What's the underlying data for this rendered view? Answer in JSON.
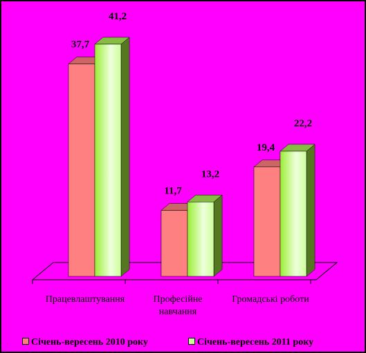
{
  "chart_data": {
    "type": "bar3d",
    "categories": [
      "Працевлаштування",
      "Професійне навчання",
      "Громадські роботи"
    ],
    "series": [
      {
        "name": "Січень-вересень 2010 року",
        "color": "#ff8080",
        "values": [
          37.7,
          11.7,
          19.4
        ],
        "value_labels": [
          "37,7",
          "11,7",
          "19,4"
        ]
      },
      {
        "name": "Січень-вересень 2011 року",
        "color": "#ccff99",
        "values": [
          41.2,
          13.2,
          22.2
        ],
        "value_labels": [
          "41,2",
          "13,2",
          "22,2"
        ]
      }
    ]
  }
}
